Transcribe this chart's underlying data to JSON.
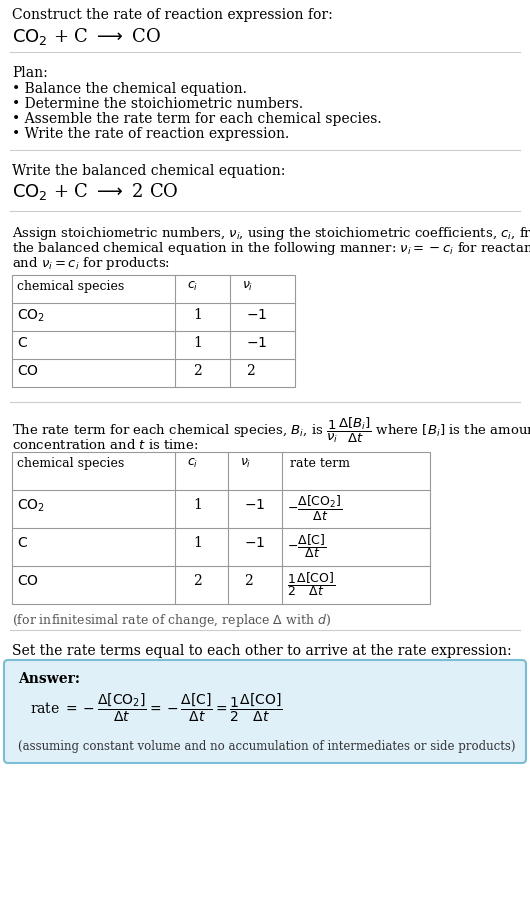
{
  "bg_color": "#ffffff",
  "text_color": "#000000",
  "gray_text": "#555555",
  "table_border_color": "#999999",
  "answer_bg_color": "#dff0f8",
  "answer_border_color": "#7bbdd4",
  "section_line_color": "#cccccc",
  "plan_header": "Plan:",
  "plan_items": [
    "• Balance the chemical equation.",
    "• Determine the stoichiometric numbers.",
    "• Assemble the rate term for each chemical species.",
    "• Write the rate of reaction expression."
  ],
  "balanced_eq_header": "Write the balanced chemical equation:",
  "assign_para": "Assign stoichiometric numbers, $\\nu_i$, using the stoichiometric coefficients, $c_i$, from the balanced chemical equation in the following manner: $\\nu_i = -c_i$ for reactants and $\\nu_i = c_i$ for products:",
  "table1_headers": [
    "chemical species",
    "$c_i$",
    "$\\nu_i$"
  ],
  "table1_rows": [
    [
      "$\\mathrm{CO_2}$",
      "1",
      "$-1$"
    ],
    [
      "$\\mathrm{C}$",
      "1",
      "$-1$"
    ],
    [
      "$\\mathrm{CO}$",
      "2",
      "2"
    ]
  ],
  "rate_term_para": "The rate term for each chemical species, $B_i$, is $\\dfrac{1}{\\nu_i}\\dfrac{\\Delta[B_i]}{\\Delta t}$ where $[B_i]$ is the amount\nconcentration and $t$ is time:",
  "table2_headers": [
    "chemical species",
    "$c_i$",
    "$\\nu_i$",
    "rate term"
  ],
  "table2_rows": [
    [
      "$\\mathrm{CO_2}$",
      "1",
      "$-1$",
      "$-\\dfrac{\\Delta[\\mathrm{CO_2}]}{\\Delta t}$"
    ],
    [
      "$\\mathrm{C}$",
      "1",
      "$-1$",
      "$-\\dfrac{\\Delta[\\mathrm{C}]}{\\Delta t}$"
    ],
    [
      "$\\mathrm{CO}$",
      "2",
      "2",
      "$\\dfrac{1}{2}\\dfrac{\\Delta[\\mathrm{CO}]}{\\Delta t}$"
    ]
  ],
  "infinitesimal_note": "(for infinitesimal rate of change, replace $\\Delta$ with $d$)",
  "set_equal_header": "Set the rate terms equal to each other to arrive at the rate expression:",
  "answer_label": "Answer:",
  "answer_rate": "rate $= -\\dfrac{\\Delta[\\mathrm{CO_2}]}{\\Delta t} = -\\dfrac{\\Delta[\\mathrm{C}]}{\\Delta t} = \\dfrac{1}{2}\\dfrac{\\Delta[\\mathrm{CO}]}{\\Delta t}$",
  "answer_note": "(assuming constant volume and no accumulation of intermediates or side products)"
}
